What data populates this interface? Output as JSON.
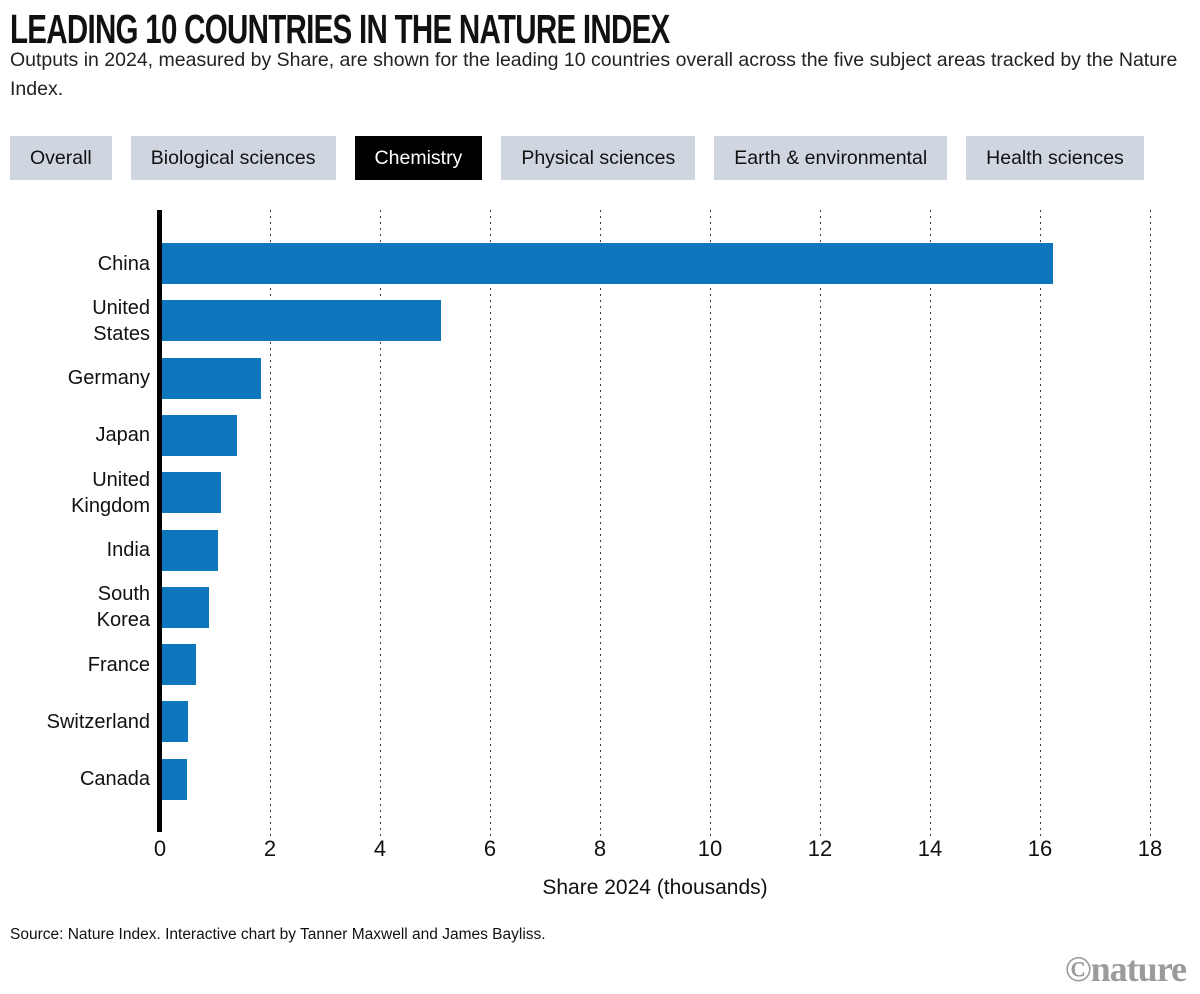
{
  "header": {
    "title": "LEADING 10 COUNTRIES IN THE NATURE INDEX",
    "subtitle": "Outputs in 2024, measured by Share, are shown for the leading 10 countries overall across the five subject areas tracked by the Nature Index."
  },
  "tabs": [
    {
      "label": "Overall",
      "active": false
    },
    {
      "label": "Biological sciences",
      "active": false
    },
    {
      "label": "Chemistry",
      "active": true
    },
    {
      "label": "Physical sciences",
      "active": false
    },
    {
      "label": "Earth & environmental",
      "active": false
    },
    {
      "label": "Health sciences",
      "active": false
    }
  ],
  "chart_data": {
    "type": "bar",
    "orientation": "horizontal",
    "categories": [
      "China",
      "United\nStates",
      "Germany",
      "Japan",
      "United\nKingdom",
      "India",
      "South\nKorea",
      "France",
      "Switzerland",
      "Canada"
    ],
    "values": [
      16.2,
      5.07,
      1.8,
      1.37,
      1.08,
      1.02,
      0.85,
      0.62,
      0.47,
      0.45
    ],
    "title": "Leading 10 countries in the Nature Index — Chemistry",
    "xlabel": "Share 2024 (thousands)",
    "ylabel": "",
    "x_ticks": [
      0,
      2,
      4,
      6,
      8,
      10,
      12,
      14,
      16,
      18
    ],
    "xlim": [
      0,
      18
    ],
    "grid": "dotted-vertical",
    "legend": "none"
  },
  "footer": {
    "source": "Source: Nature Index. Interactive chart by Tanner Maxwell and James Bayliss.",
    "logo": "©nature"
  },
  "colors": {
    "bar_blue": "#0d76bc",
    "tab_bg": "#cfd6e0",
    "tab_text": "#111111",
    "tab_active_bg": "#000000",
    "tab_active_text": "#ffffff",
    "axis_black": "#000000",
    "logo_gray": "#9b9b9b"
  }
}
